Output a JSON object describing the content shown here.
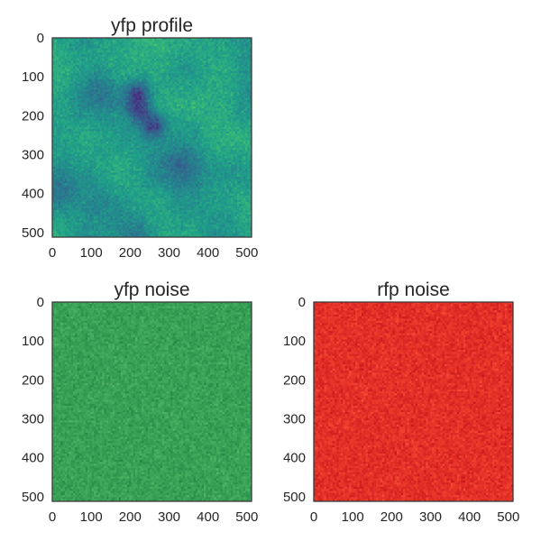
{
  "chart_data": [
    {
      "type": "heatmap",
      "title": "yfp profile",
      "colormap": "viridis",
      "xlim": [
        0,
        512
      ],
      "ylim": [
        512,
        0
      ],
      "xticks": [
        0,
        100,
        200,
        300,
        400,
        500
      ],
      "yticks": [
        0,
        100,
        200,
        300,
        400,
        500
      ],
      "tick_labels": {
        "x": [
          "0",
          "100",
          "200",
          "300",
          "400",
          "500"
        ],
        "y": [
          "0",
          "100",
          "200",
          "300",
          "400",
          "500"
        ]
      },
      "dark_spots": [
        {
          "x": 225,
          "y": 185,
          "description": "dark spot"
        },
        {
          "x": 220,
          "y": 140,
          "description": "dark spot"
        },
        {
          "x": 260,
          "y": 225,
          "description": "dark spot"
        },
        {
          "x": 120,
          "y": 130,
          "description": "dark region"
        },
        {
          "x": 105,
          "y": 430,
          "description": "dark region"
        },
        {
          "x": 215,
          "y": 505,
          "description": "dark region"
        },
        {
          "x": 15,
          "y": 390,
          "description": "dark region"
        },
        {
          "x": 330,
          "y": 330,
          "description": "dark region"
        }
      ]
    },
    {
      "type": "heatmap",
      "title": "yfp noise",
      "colormap": "greens",
      "xlim": [
        0,
        512
      ],
      "ylim": [
        512,
        0
      ],
      "xticks": [
        0,
        100,
        200,
        300,
        400,
        500
      ],
      "yticks": [
        0,
        100,
        200,
        300,
        400,
        500
      ],
      "tick_labels": {
        "x": [
          "0",
          "100",
          "200",
          "300",
          "400",
          "500"
        ],
        "y": [
          "0",
          "100",
          "200",
          "300",
          "400",
          "500"
        ]
      }
    },
    {
      "type": "heatmap",
      "title": "rfp noise",
      "colormap": "reds",
      "xlim": [
        0,
        512
      ],
      "ylim": [
        512,
        0
      ],
      "xticks": [
        0,
        100,
        200,
        300,
        400,
        500
      ],
      "yticks": [
        0,
        100,
        200,
        300,
        400,
        500
      ],
      "tick_labels": {
        "x": [
          "0",
          "100",
          "200",
          "300",
          "400",
          "500"
        ],
        "y": [
          "0",
          "100",
          "200",
          "300",
          "400",
          "500"
        ]
      }
    }
  ],
  "colors": {
    "axis_frame": "#3a3a3a",
    "text": "#262626"
  }
}
